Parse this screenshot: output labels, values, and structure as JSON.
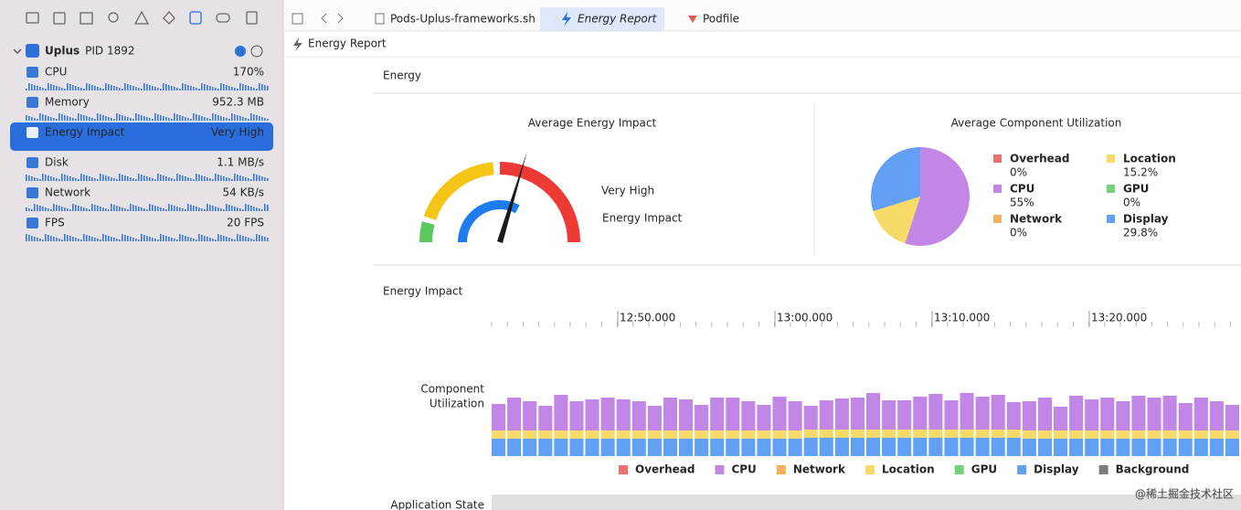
{
  "sidebar": {
    "app": {
      "name": "Uplus",
      "pid": "PID 1892"
    },
    "gauges": [
      {
        "label": "CPU",
        "value": "170%"
      },
      {
        "label": "Memory",
        "value": "952.3 MB"
      },
      {
        "label": "Energy Impact",
        "value": "Very High"
      },
      {
        "label": "Disk",
        "value": "1.1 MB/s"
      },
      {
        "label": "Network",
        "value": "54 KB/s"
      },
      {
        "label": "FPS",
        "value": "20 FPS"
      }
    ]
  },
  "tabs": [
    "Pods-Uplus-frameworks.sh",
    "Energy Report",
    "Podfile"
  ],
  "breadcrumb": "Energy Report",
  "report": {
    "title": "Energy",
    "average_impact": {
      "title": "Average Energy Impact",
      "level": "Very High",
      "caption": "Energy Impact"
    },
    "components": {
      "title": "Average Component Utilization",
      "items": [
        {
          "name": "Overhead",
          "color": "#ef6f6c",
          "value": 0,
          "value_label": "0%"
        },
        {
          "name": "CPU",
          "color": "#c286e6",
          "value": 55,
          "value_label": "55%"
        },
        {
          "name": "Network",
          "color": "#f5b15f",
          "value": 0,
          "value_label": "0%"
        },
        {
          "name": "Location",
          "color": "#f7da67",
          "value": 15.2,
          "value_label": "15.2%"
        },
        {
          "name": "GPU",
          "color": "#74d37a",
          "value": 0,
          "value_label": "0%"
        },
        {
          "name": "Display",
          "color": "#62a0f6",
          "value": 29.8,
          "value_label": "29.8%"
        }
      ]
    },
    "timeline": {
      "title": "Energy Impact",
      "ticks": [
        "12:50.000",
        "13:00.000",
        "13:10.000",
        "13:20.000"
      ],
      "utilization": {
        "label": [
          "Component",
          "Utilization"
        ],
        "series": [
          {
            "color": "#62a0f6",
            "values": [
              19,
              19,
              19,
              19,
              19,
              19,
              19,
              19,
              19,
              19,
              19,
              19,
              19,
              19,
              19,
              19,
              19,
              19,
              19,
              19,
              20,
              20,
              20,
              20,
              20,
              20,
              20,
              20,
              20,
              20,
              20,
              20,
              20,
              20,
              19,
              19,
              19,
              19,
              19,
              19,
              19,
              19,
              19,
              19,
              19,
              19,
              19,
              19
            ]
          },
          {
            "color": "#f7da67",
            "values": [
              9,
              9,
              9,
              9,
              9,
              9,
              9,
              9,
              9,
              9,
              9,
              9,
              9,
              9,
              9,
              9,
              9,
              9,
              9,
              9,
              9,
              9,
              9,
              9,
              9,
              9,
              9,
              9,
              9,
              9,
              9,
              9,
              9,
              9,
              9,
              9,
              9,
              9,
              9,
              9,
              9,
              9,
              9,
              9,
              9,
              9,
              9,
              9
            ]
          },
          {
            "color": "#c286e6",
            "values": [
              29,
              36,
              32,
              27,
              39,
              32,
              34,
              36,
              34,
              32,
              27,
              36,
              34,
              28,
              36,
              36,
              32,
              28,
              37,
              32,
              26,
              32,
              34,
              35,
              40,
              32,
              32,
              36,
              39,
              32,
              40,
              36,
              38,
              30,
              32,
              36,
              26,
              38,
              34,
              36,
              32,
              38,
              36,
              38,
              30,
              36,
              32,
              28
            ]
          }
        ]
      },
      "legend": [
        {
          "name": "Overhead",
          "color": "#ef6f6c"
        },
        {
          "name": "CPU",
          "color": "#c286e6"
        },
        {
          "name": "Network",
          "color": "#f5b15f"
        },
        {
          "name": "Location",
          "color": "#f7da67"
        },
        {
          "name": "GPU",
          "color": "#74d37a"
        },
        {
          "name": "Display",
          "color": "#62a0f6"
        },
        {
          "name": "Background",
          "color": "#7d7d7d"
        }
      ],
      "app_state_label": "Application State"
    }
  },
  "watermark": "@稀土掘金技术社区"
}
